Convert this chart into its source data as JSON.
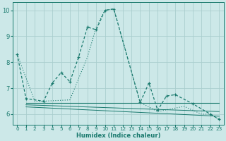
{
  "xlabel": "Humidex (Indice chaleur)",
  "bg_color": "#cce8e8",
  "line_color": "#1a7a6e",
  "grid_color": "#aacece",
  "xlim": [
    -0.5,
    23.5
  ],
  "ylim": [
    5.6,
    10.3
  ],
  "xticks": [
    0,
    1,
    2,
    3,
    4,
    5,
    6,
    7,
    8,
    9,
    10,
    11,
    12,
    13,
    14,
    15,
    16,
    17,
    18,
    19,
    20,
    21,
    22,
    23
  ],
  "yticks": [
    6,
    7,
    8,
    9,
    10
  ],
  "main_x": [
    0,
    1,
    3,
    4,
    5,
    6,
    7,
    8,
    9,
    10,
    11,
    14,
    15,
    16,
    17,
    18,
    20,
    22,
    23
  ],
  "main_y": [
    8.3,
    6.6,
    6.5,
    7.2,
    7.6,
    7.25,
    8.2,
    9.35,
    9.25,
    10.0,
    10.05,
    6.45,
    7.2,
    6.15,
    6.7,
    6.75,
    6.4,
    6.0,
    5.8
  ],
  "smooth_x": [
    0,
    2,
    3,
    6,
    8,
    9,
    10,
    11,
    14,
    16,
    19,
    21,
    22,
    23
  ],
  "smooth_y": [
    8.3,
    6.5,
    6.5,
    6.55,
    8.2,
    9.35,
    10.0,
    10.05,
    6.45,
    6.1,
    6.3,
    6.0,
    6.0,
    5.8
  ],
  "flat_lines": [
    {
      "x": [
        1,
        23
      ],
      "y": [
        6.45,
        6.45
      ]
    },
    {
      "x": [
        1,
        19
      ],
      "y": [
        6.38,
        6.3
      ]
    },
    {
      "x": [
        1,
        20
      ],
      "y": [
        6.32,
        6.18
      ]
    }
  ]
}
